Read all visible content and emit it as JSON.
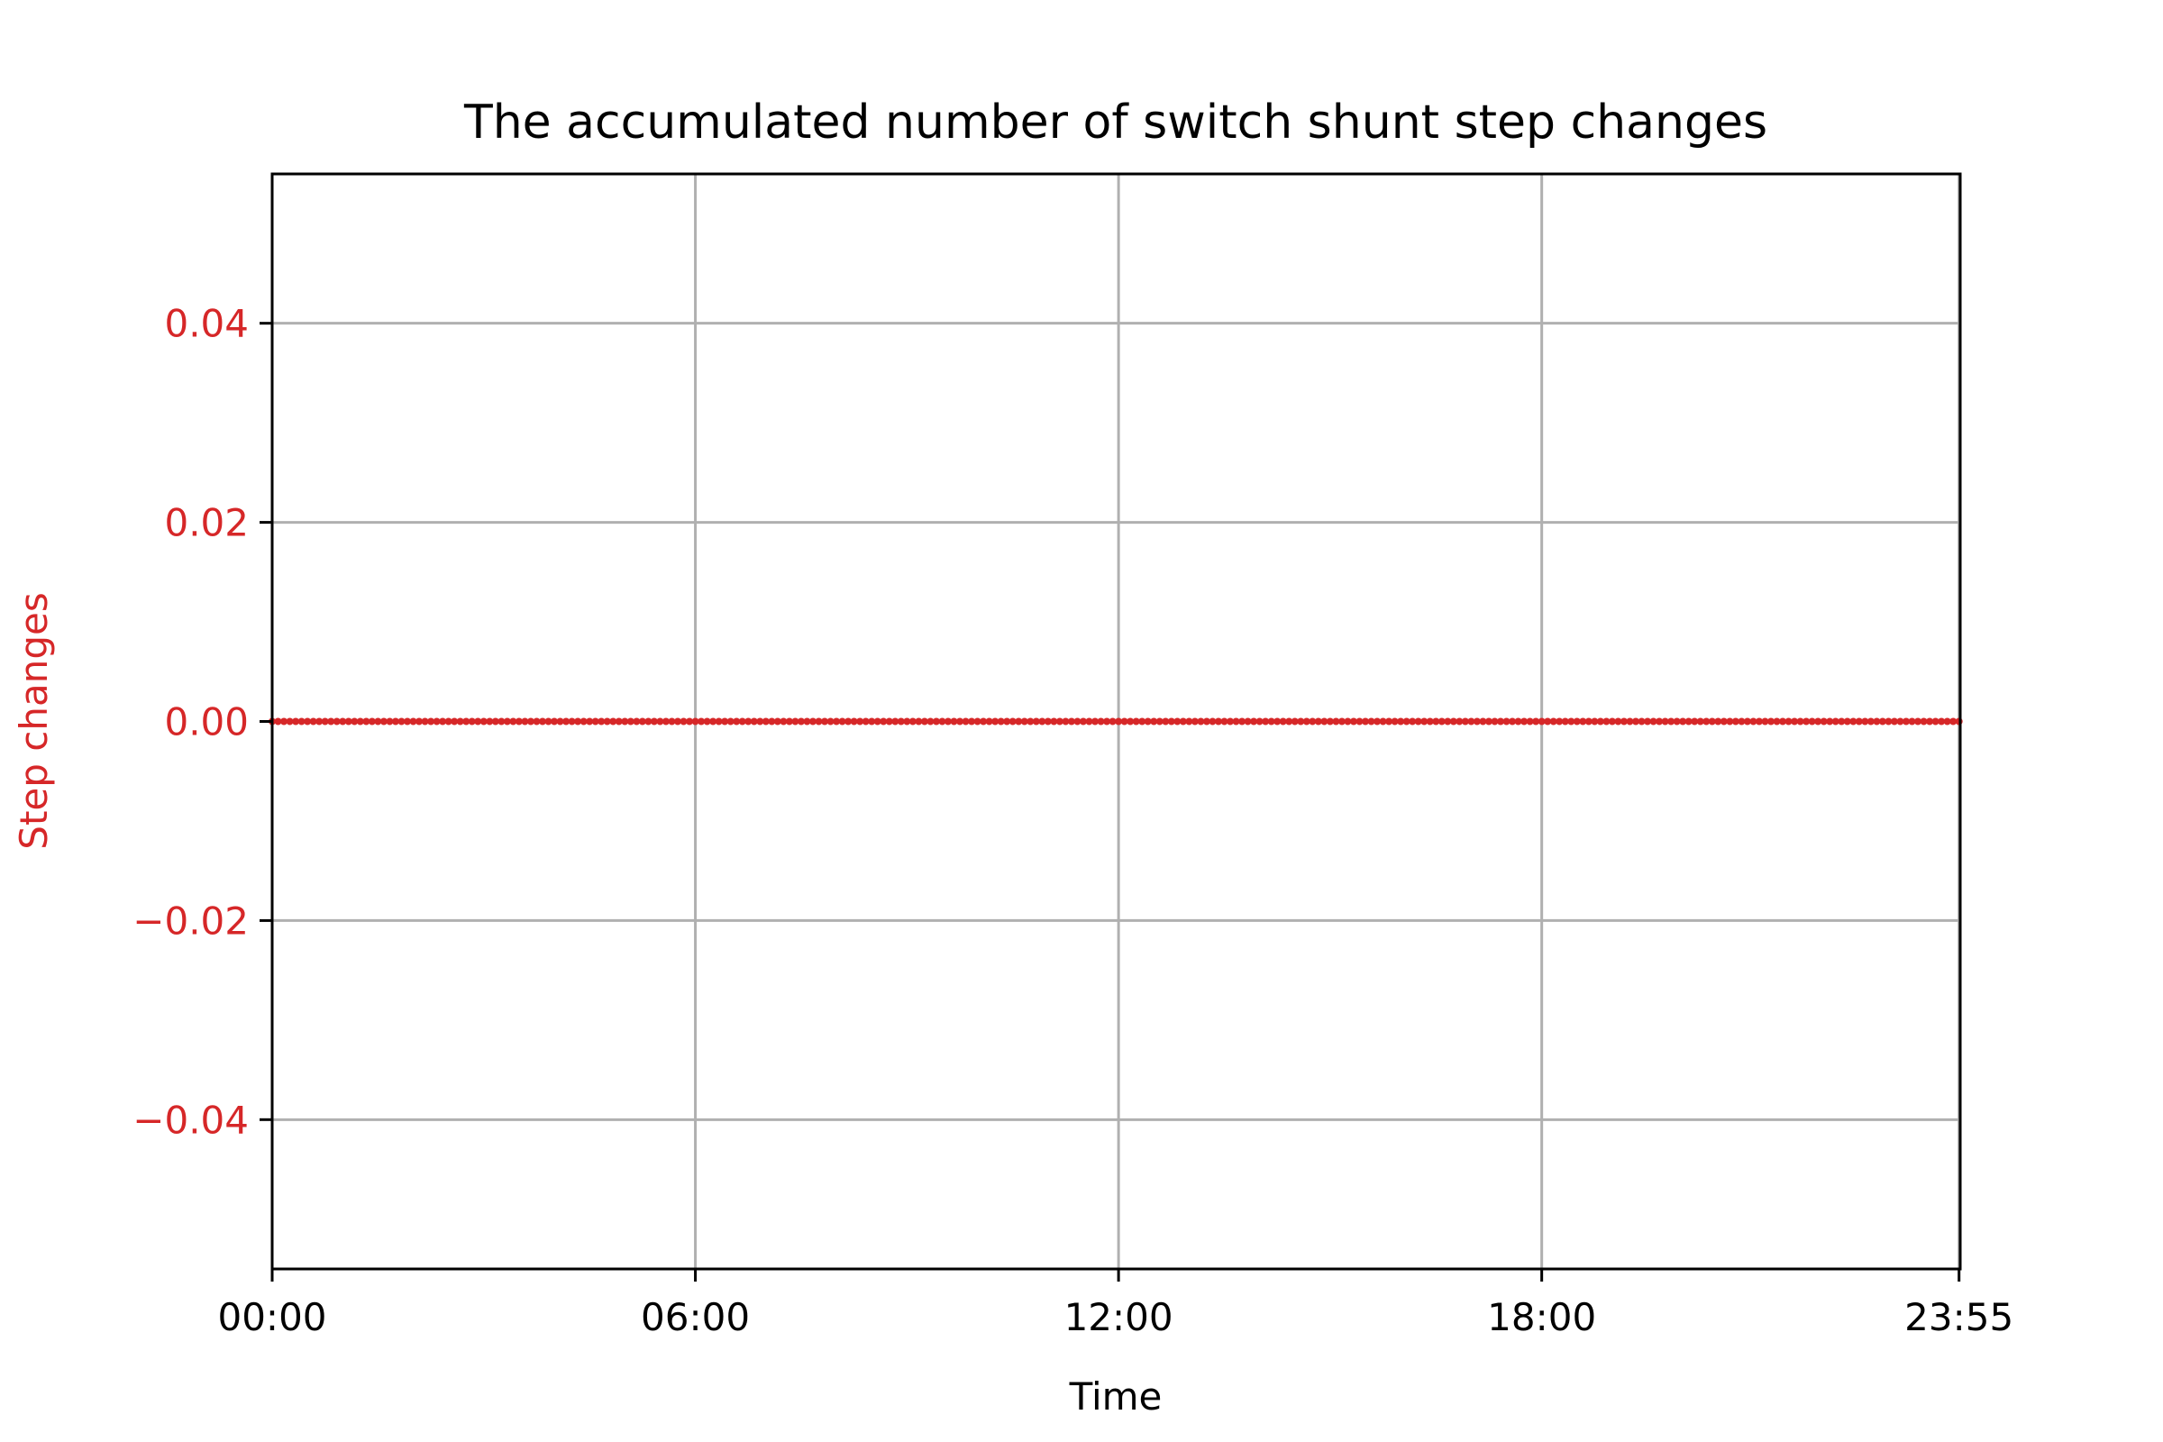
{
  "chart_data": {
    "type": "line",
    "title": "The accumulated number of switch shunt step changes",
    "xlabel": "Time",
    "ylabel": "Step changes",
    "x_tick_labels": [
      "00:00",
      "06:00",
      "12:00",
      "18:00",
      "23:55"
    ],
    "x_tick_minutes": [
      0,
      360,
      720,
      1080,
      1435
    ],
    "y_tick_labels": [
      "0.04",
      "0.02",
      "0.00",
      "−0.02",
      "−0.04"
    ],
    "y_tick_values": [
      0.04,
      0.02,
      0.0,
      -0.02,
      -0.04
    ],
    "xlim": [
      "00:00",
      "23:55"
    ],
    "ylim": [
      -0.055,
      0.055
    ],
    "grid": true,
    "series": [
      {
        "x_start": "00:00",
        "x_end": "23:55",
        "x_step": "00:05",
        "values_constant": 0,
        "marker": "dot",
        "color": "#d62728"
      }
    ],
    "colors": {
      "series": "#d62728",
      "ylabel": "#d62728",
      "ytick": "#d62728",
      "grid": "#b0b0b0",
      "axes": "#000000"
    }
  }
}
